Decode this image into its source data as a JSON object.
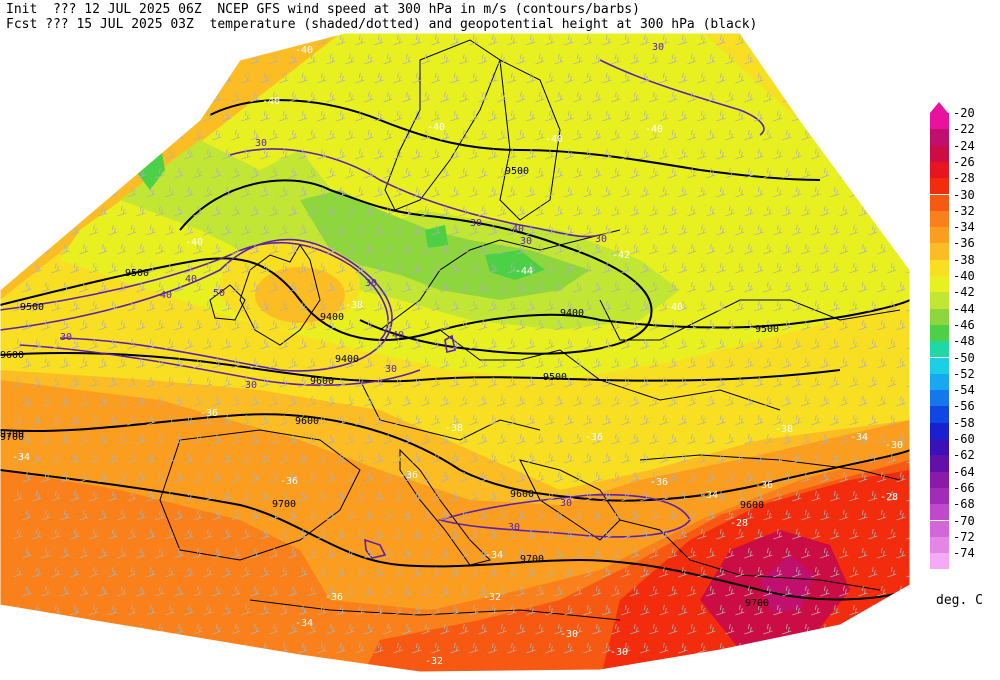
{
  "header": {
    "line1": "Init  ??? 12 JUL 2025 06Z  NCEP GFS wind speed at 300 hPa in m/s (contours/barbs)",
    "line2": "Fcst ??? 15 JUL 2025 03Z  temperature (shaded/dotted) and geopotential height at 300 hPa (black)"
  },
  "legend": {
    "unit": "deg. C",
    "levels": [
      {
        "label": "-20",
        "color": "#e8129c"
      },
      {
        "label": "-22",
        "color": "#c00f6c"
      },
      {
        "label": "-24",
        "color": "#cc0c44"
      },
      {
        "label": "-26",
        "color": "#e81420"
      },
      {
        "label": "-28",
        "color": "#f22c0c"
      },
      {
        "label": "-30",
        "color": "#f75812"
      },
      {
        "label": "-32",
        "color": "#f9801a"
      },
      {
        "label": "-34",
        "color": "#fb9e20"
      },
      {
        "label": "-36",
        "color": "#fcbd24"
      },
      {
        "label": "-38",
        "color": "#f8df22"
      },
      {
        "label": "-40",
        "color": "#e8f020"
      },
      {
        "label": "-42",
        "color": "#c2e634"
      },
      {
        "label": "-44",
        "color": "#8ed63e"
      },
      {
        "label": "-46",
        "color": "#4cd046"
      },
      {
        "label": "-48",
        "color": "#20d8a4"
      },
      {
        "label": "-50",
        "color": "#1ccfe4"
      },
      {
        "label": "-52",
        "color": "#18a8f0"
      },
      {
        "label": "-54",
        "color": "#1478ec"
      },
      {
        "label": "-56",
        "color": "#1046e4"
      },
      {
        "label": "-58",
        "color": "#1820d0"
      },
      {
        "label": "-60",
        "color": "#3a10b8"
      },
      {
        "label": "-62",
        "color": "#6210a8"
      },
      {
        "label": "-64",
        "color": "#8a1aa8"
      },
      {
        "label": "-66",
        "color": "#a22cb8"
      },
      {
        "label": "-68",
        "color": "#c048cc"
      },
      {
        "label": "-70",
        "color": "#d466dc"
      },
      {
        "label": "-72",
        "color": "#e486e6"
      },
      {
        "label": "-74",
        "color": "#f4aaf4"
      }
    ]
  },
  "map_labels": {
    "height": [
      "9500",
      "9500",
      "9500",
      "9400",
      "9400",
      "9400",
      "9500",
      "9500",
      "9600",
      "9600",
      "9600",
      "9700",
      "9700",
      "9700",
      "9600",
      "9700",
      "9700",
      "9600"
    ],
    "temperature": [
      "-40",
      "-40",
      "-40",
      "-40",
      "-40",
      "-40",
      "-44",
      "-42",
      "-40",
      "-38",
      "-36",
      "-34",
      "-36",
      "-38",
      "-36",
      "-36",
      "-34",
      "-36",
      "-38",
      "-36",
      "-34",
      "-34",
      "-32",
      "-36",
      "-34",
      "-32",
      "-30",
      "-28",
      "-30",
      "-28",
      "-30"
    ],
    "wind": [
      "30",
      "30",
      "40",
      "40",
      "30",
      "50",
      "40",
      "30",
      "30",
      "30",
      "40",
      "30",
      "30",
      "30",
      "30",
      "30"
    ]
  }
}
